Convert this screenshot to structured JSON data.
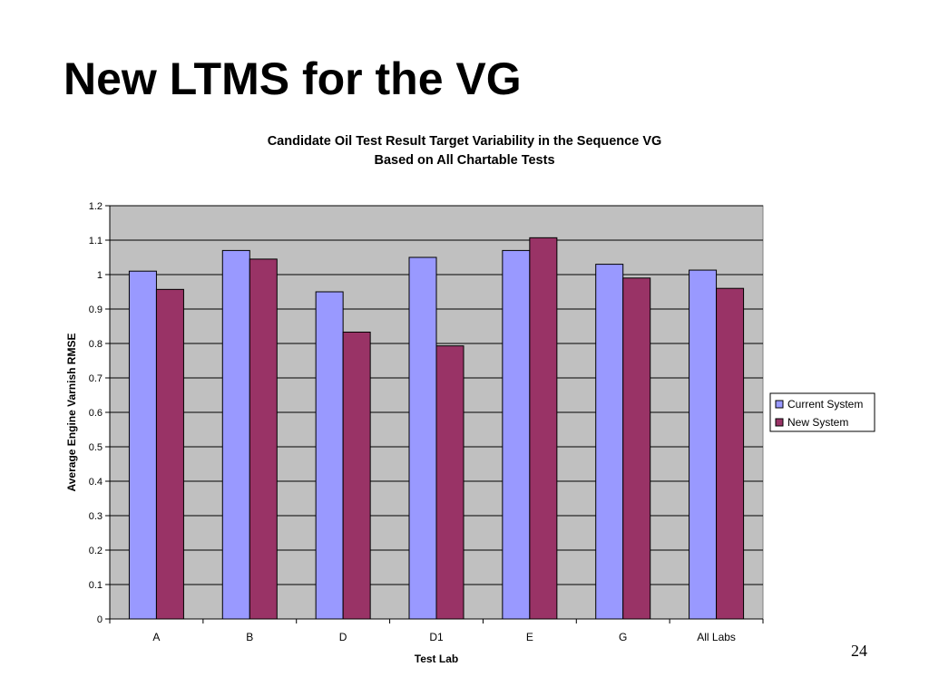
{
  "slide": {
    "title": "New LTMS for the VG",
    "page_number": "24"
  },
  "chart_data": {
    "type": "bar",
    "title_lines": [
      "Candidate Oil Test Result Target Variability in the Sequence VG",
      "Based on All Chartable Tests"
    ],
    "xlabel": "Test Lab",
    "ylabel": "Average Engine Varnish RMSE",
    "categories": [
      "A",
      "B",
      "D",
      "D1",
      "E",
      "G",
      "All Labs"
    ],
    "ylim": [
      0,
      1.2
    ],
    "yticks": [
      "0",
      "0.1",
      "0.2",
      "0.3",
      "0.4",
      "0.5",
      "0.6",
      "0.7",
      "0.8",
      "0.9",
      "1",
      "1.1",
      "1.2"
    ],
    "grid": true,
    "legend_position": "right",
    "plot_background": "#c0c0c0",
    "series": [
      {
        "name": "Current System",
        "color": "#9999ff",
        "values": [
          1.01,
          1.07,
          0.95,
          1.05,
          1.07,
          1.03,
          1.013
        ]
      },
      {
        "name": "New System",
        "color": "#993366",
        "values": [
          0.957,
          1.045,
          0.833,
          0.793,
          1.107,
          0.99,
          0.96
        ]
      }
    ]
  }
}
